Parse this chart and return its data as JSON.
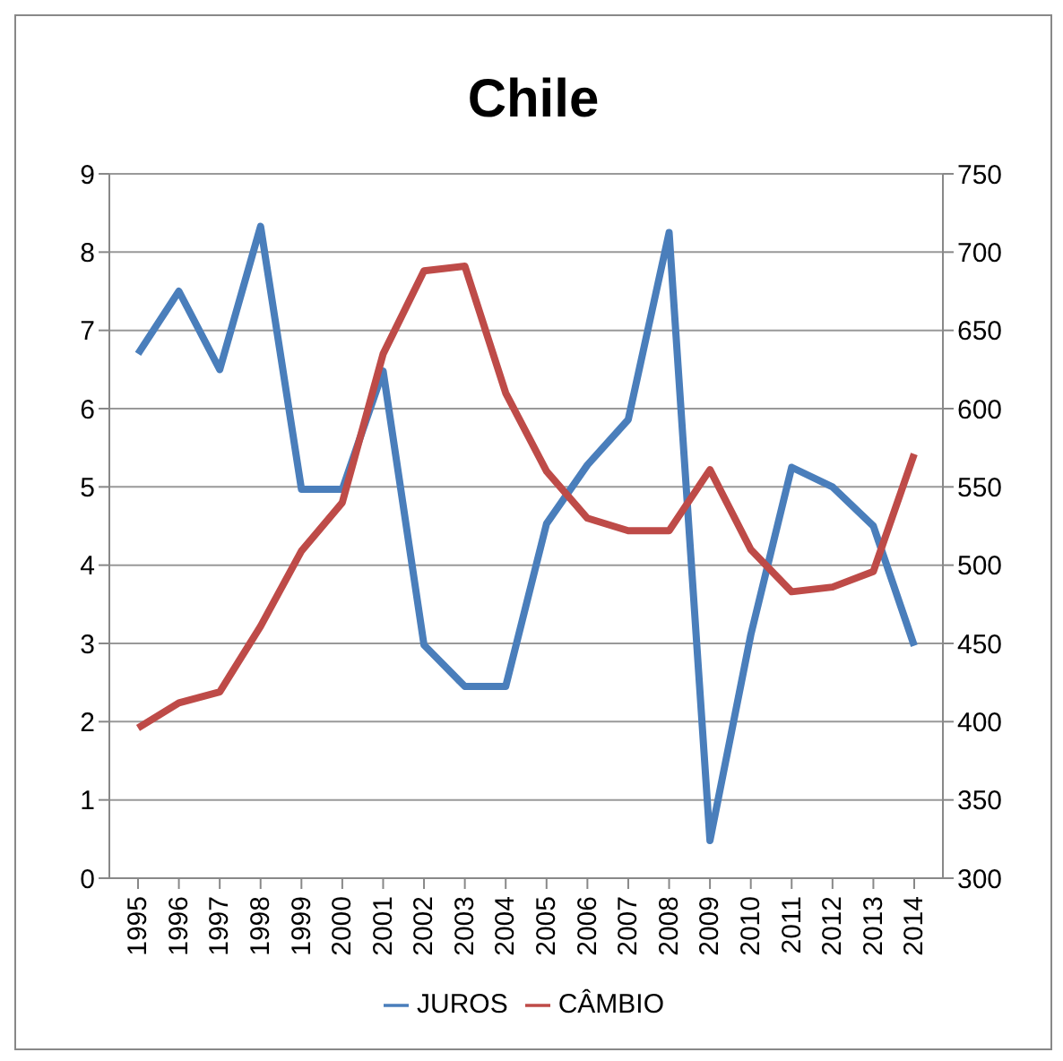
{
  "chart_data": {
    "type": "line",
    "title": "Chile",
    "categories": [
      "1995",
      "1996",
      "1997",
      "1998",
      "1999",
      "2000",
      "2001",
      "2002",
      "2003",
      "2004",
      "2005",
      "2006",
      "2007",
      "2008",
      "2009",
      "2010",
      "2011",
      "2012",
      "2013",
      "2014"
    ],
    "series": [
      {
        "name": "JUROS",
        "color": "#4a7ebb",
        "values": [
          6.7,
          7.5,
          6.5,
          8.33,
          4.97,
          4.97,
          6.48,
          2.98,
          2.45,
          2.45,
          4.53,
          5.28,
          5.86,
          8.25,
          0.48,
          3.11,
          5.25,
          5.0,
          4.5,
          2.97
        ]
      },
      {
        "name": "CÂMBIO",
        "color": "#be4b48",
        "axis": "y2",
        "values": [
          396,
          412,
          419,
          461,
          509,
          540,
          635,
          688,
          691,
          610,
          560,
          530,
          522,
          522,
          561,
          510,
          483,
          486,
          496,
          571
        ]
      }
    ],
    "ylim": [
      0,
      9
    ],
    "yticks": [
      0,
      1,
      2,
      3,
      4,
      5,
      6,
      7,
      8,
      9
    ],
    "y2lim": [
      300,
      750
    ],
    "y2ticks": [
      300,
      350,
      400,
      450,
      500,
      550,
      600,
      650,
      700,
      750
    ],
    "grid": "y",
    "legend": "bottom",
    "marker": "none",
    "line_style": "solid"
  }
}
